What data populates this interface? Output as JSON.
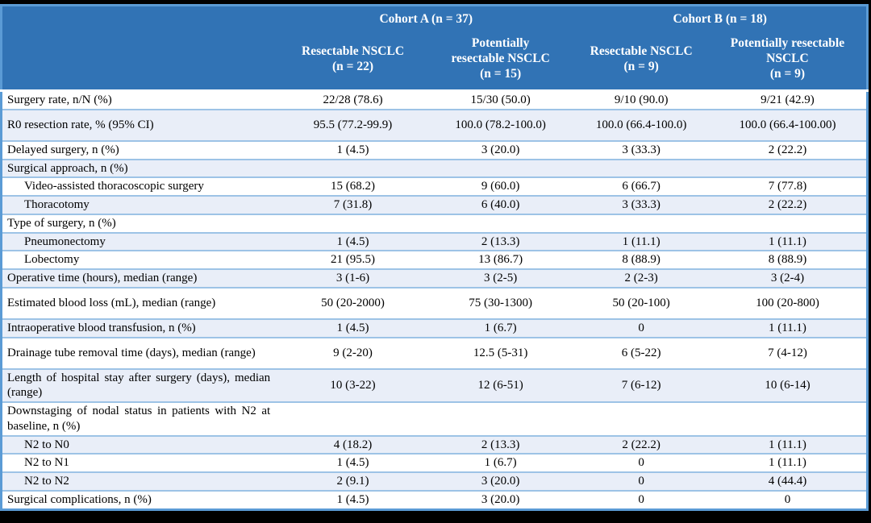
{
  "colors": {
    "header_bg": "#3173B5",
    "alt_row": "#E9EEF8",
    "separator": "#9DC3E6",
    "outer_border": "#5B9BD5",
    "header_text": "#FFFFFF",
    "body_text": "#000000",
    "page_bg": "#000000"
  },
  "table": {
    "cohorts": [
      {
        "label": "Cohort A (n = 37)"
      },
      {
        "label": "Cohort B (n = 18)"
      }
    ],
    "columns": [
      {
        "name": "Resectable NSCLC",
        "n": "(n = 22)"
      },
      {
        "name": "Potentially resectable NSCLC",
        "n": "(n = 15)"
      },
      {
        "name": "Resectable NSCLC",
        "n": "(n = 9)"
      },
      {
        "name": "Potentially resectable NSCLC",
        "n": "(n = 9)"
      }
    ],
    "rows": [
      {
        "label": "Surgery rate, n/N (%)",
        "indent": false,
        "tall": false,
        "values": [
          "22/28 (78.6)",
          "15/30 (50.0)",
          "9/10 (90.0)",
          "9/21 (42.9)"
        ]
      },
      {
        "label": "R0 resection rate, % (95% CI)",
        "indent": false,
        "tall": true,
        "values": [
          "95.5 (77.2-99.9)",
          "100.0 (78.2-100.0)",
          "100.0 (66.4-100.0)",
          "100.0 (66.4-100.00)"
        ]
      },
      {
        "label": "Delayed surgery, n (%)",
        "indent": false,
        "tall": false,
        "values": [
          "1 (4.5)",
          "3 (20.0)",
          "3 (33.3)",
          "2 (22.2)"
        ]
      },
      {
        "label": "Surgical approach, n (%)",
        "indent": false,
        "tall": false,
        "values": [
          "",
          "",
          "",
          ""
        ]
      },
      {
        "label": "Video-assisted thoracoscopic surgery",
        "indent": true,
        "tall": false,
        "values": [
          "15 (68.2)",
          "9 (60.0)",
          "6 (66.7)",
          "7 (77.8)"
        ]
      },
      {
        "label": "Thoracotomy",
        "indent": true,
        "tall": false,
        "values": [
          "7 (31.8)",
          "6 (40.0)",
          "3 (33.3)",
          "2 (22.2)"
        ]
      },
      {
        "label": "Type of surgery, n (%)",
        "indent": false,
        "tall": false,
        "values": [
          "",
          "",
          "",
          ""
        ]
      },
      {
        "label": "Pneumonectomy",
        "indent": true,
        "tall": false,
        "values": [
          "1 (4.5)",
          "2 (13.3)",
          "1 (11.1)",
          "1 (11.1)"
        ]
      },
      {
        "label": "Lobectomy",
        "indent": true,
        "tall": false,
        "values": [
          "21 (95.5)",
          "13 (86.7)",
          "8 (88.9)",
          "8 (88.9)"
        ]
      },
      {
        "label": "Operative time (hours), median (range)",
        "indent": false,
        "tall": false,
        "values": [
          "3 (1-6)",
          "3 (2-5)",
          "2 (2-3)",
          "3 (2-4)"
        ]
      },
      {
        "label": "Estimated blood loss (mL), median (range)",
        "indent": false,
        "tall": true,
        "values": [
          "50 (20-2000)",
          "75 (30-1300)",
          "50 (20-100)",
          "100 (20-800)"
        ]
      },
      {
        "label": "Intraoperative blood transfusion, n (%)",
        "indent": false,
        "tall": false,
        "values": [
          "1 (4.5)",
          "1 (6.7)",
          "0",
          "1 (11.1)"
        ]
      },
      {
        "label": "Drainage tube removal time (days), median (range)",
        "indent": false,
        "tall": true,
        "values": [
          "9 (2-20)",
          "12.5 (5-31)",
          "6 (5-22)",
          "7 (4-12)"
        ]
      },
      {
        "label": "Length of hospital stay after surgery (days), median (range)",
        "indent": false,
        "tall": true,
        "values": [
          "10 (3-22)",
          "12 (6-51)",
          "7 (6-12)",
          "10 (6-14)"
        ]
      },
      {
        "label": "Downstaging of nodal status in patients with N2 at baseline, n (%)",
        "indent": false,
        "tall": true,
        "values": [
          "",
          "",
          "",
          ""
        ]
      },
      {
        "label": "N2 to N0",
        "indent": true,
        "tall": false,
        "values": [
          "4 (18.2)",
          "2 (13.3)",
          "2 (22.2)",
          "1 (11.1)"
        ]
      },
      {
        "label": "N2 to N1",
        "indent": true,
        "tall": false,
        "values": [
          "1 (4.5)",
          "1 (6.7)",
          "0",
          "1 (11.1)"
        ]
      },
      {
        "label": "N2 to N2",
        "indent": true,
        "tall": false,
        "values": [
          "2 (9.1)",
          "3 (20.0)",
          "0",
          "4 (44.4)"
        ]
      },
      {
        "label": "Surgical complications, n (%)",
        "indent": false,
        "tall": false,
        "values": [
          "1 (4.5)",
          "3 (20.0)",
          "0",
          "0"
        ]
      }
    ]
  }
}
